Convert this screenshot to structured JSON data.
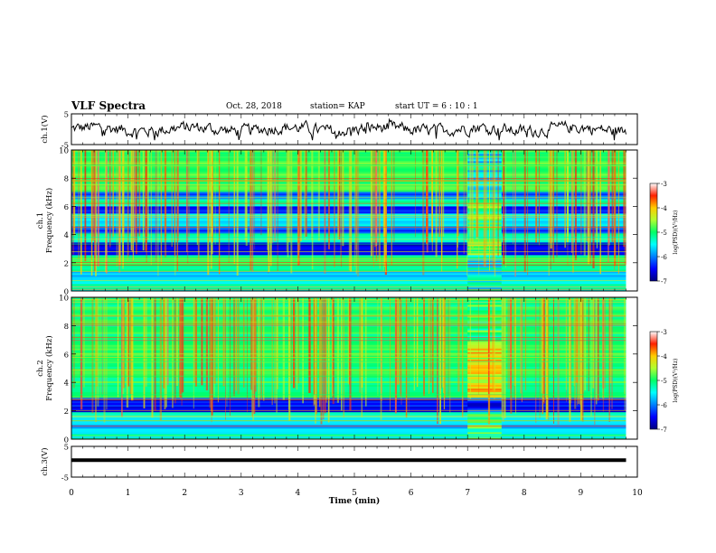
{
  "header": {
    "title": "VLF Spectra",
    "date": "Oct. 28, 2018",
    "station": "station= KAP",
    "start": "start  UT =  6 : 10 : 1"
  },
  "chart_data": [
    {
      "type": "line",
      "panel": "ch1-waveform",
      "ylabel": "ch.1(V)",
      "ylim": [
        -5,
        5
      ],
      "yticks": [
        "5",
        "-5"
      ],
      "xlim": [
        0,
        10
      ],
      "x_data_extent": [
        0,
        9.8
      ],
      "series": [
        {
          "values_approx": "noisy trace centred near 0 V, amplitude about ±2 V, occasional dips to about -3 V"
        }
      ],
      "color": "#000000"
    },
    {
      "type": "heatmap",
      "panel": "ch1-spectrogram",
      "ylabel": "ch.1 Frequency  (kHz)",
      "ylim": [
        0,
        10
      ],
      "yticks": [
        "0",
        "2",
        "4",
        "6",
        "8",
        "10"
      ],
      "xlim": [
        0,
        10
      ],
      "x_data_extent": [
        0,
        9.8
      ],
      "colorbar": {
        "label": "log(PSD)(V²/Hz)",
        "range": [
          -7,
          -3
        ],
        "ticks": [
          "-3",
          "-4",
          "-5",
          "-6",
          "-7"
        ]
      },
      "bands_kHz": [
        {
          "from": 0.0,
          "to": 0.7,
          "level": -5.3
        },
        {
          "from": 0.7,
          "to": 1.4,
          "level": -5.6
        },
        {
          "from": 1.4,
          "to": 2.6,
          "level": -5.0
        },
        {
          "from": 2.6,
          "to": 3.4,
          "level": -6.6
        },
        {
          "from": 3.4,
          "to": 4.1,
          "level": -5.2
        },
        {
          "from": 4.1,
          "to": 4.6,
          "level": -6.3
        },
        {
          "from": 4.6,
          "to": 5.5,
          "level": -5.6
        },
        {
          "from": 5.5,
          "to": 6.0,
          "level": -6.4
        },
        {
          "from": 6.0,
          "to": 6.6,
          "level": -5.2
        },
        {
          "from": 6.6,
          "to": 7.0,
          "level": -6.1
        },
        {
          "from": 7.0,
          "to": 10.0,
          "level": -4.9
        }
      ],
      "enhanced_interval_min": [
        7.0,
        7.6
      ]
    },
    {
      "type": "heatmap",
      "panel": "ch2-spectrogram",
      "ylabel": "ch.2 Frequency  (kHz)",
      "ylim": [
        0,
        10
      ],
      "yticks": [
        "0",
        "2",
        "4",
        "6",
        "8",
        "10"
      ],
      "xlim": [
        0,
        10
      ],
      "x_data_extent": [
        0,
        9.8
      ],
      "colorbar": {
        "label": "log(PSD)(V²/Hz)",
        "range": [
          -7,
          -3
        ],
        "ticks": [
          "-3",
          "-4",
          "-5",
          "-6",
          "-7"
        ]
      },
      "bands_kHz": [
        {
          "from": 0.0,
          "to": 0.6,
          "level": -5.4
        },
        {
          "from": 0.6,
          "to": 1.2,
          "level": -5.7
        },
        {
          "from": 1.2,
          "to": 1.9,
          "level": -5.4
        },
        {
          "from": 1.9,
          "to": 3.0,
          "level": -6.5
        },
        {
          "from": 3.0,
          "to": 3.6,
          "level": -5.1
        },
        {
          "from": 3.6,
          "to": 10.0,
          "level": -5.0
        }
      ],
      "enhanced_interval_min": [
        7.0,
        7.6
      ]
    },
    {
      "type": "line",
      "panel": "ch3-waveform",
      "ylabel": "ch.3(V)",
      "ylim": [
        -5,
        5
      ],
      "yticks": [
        "5",
        "-5"
      ],
      "xlim": [
        0,
        10
      ],
      "x_data_extent": [
        0,
        9.8
      ],
      "series": [
        {
          "values_approx": "flat trace at about 0.5 V"
        }
      ],
      "color": "#000000"
    }
  ],
  "xaxis": {
    "label": "Time  (min)",
    "ticks": [
      "0",
      "1",
      "2",
      "3",
      "4",
      "5",
      "6",
      "7",
      "8",
      "9",
      "10"
    ]
  }
}
